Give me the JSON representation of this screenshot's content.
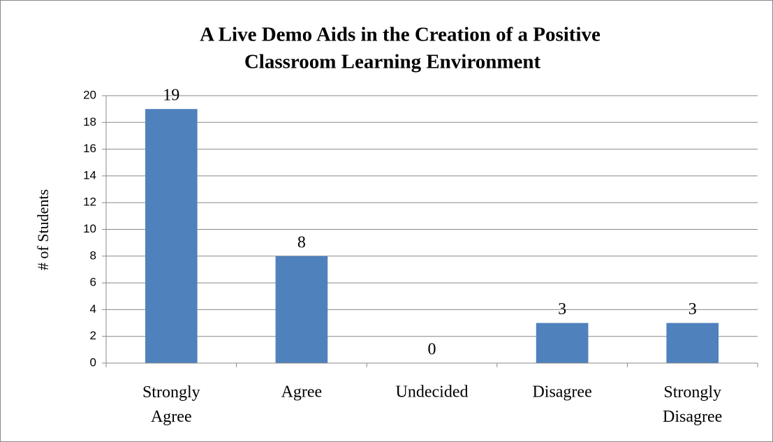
{
  "chart_data": {
    "type": "bar",
    "title": [
      "A Live Demo Aids in the Creation of a Positive",
      "Classroom Learning Environment"
    ],
    "ylabel": "# of Students",
    "categories": [
      "Strongly Agree",
      "Agree",
      "Undecided",
      "Disagree",
      "Strongly Disagree"
    ],
    "values": [
      19,
      8,
      0,
      3,
      3
    ],
    "color": "#4f81bd",
    "ylim": [
      0,
      20
    ],
    "yticks": [
      0,
      2,
      4,
      6,
      8,
      10,
      12,
      14,
      16,
      18,
      20
    ],
    "grid": true
  }
}
